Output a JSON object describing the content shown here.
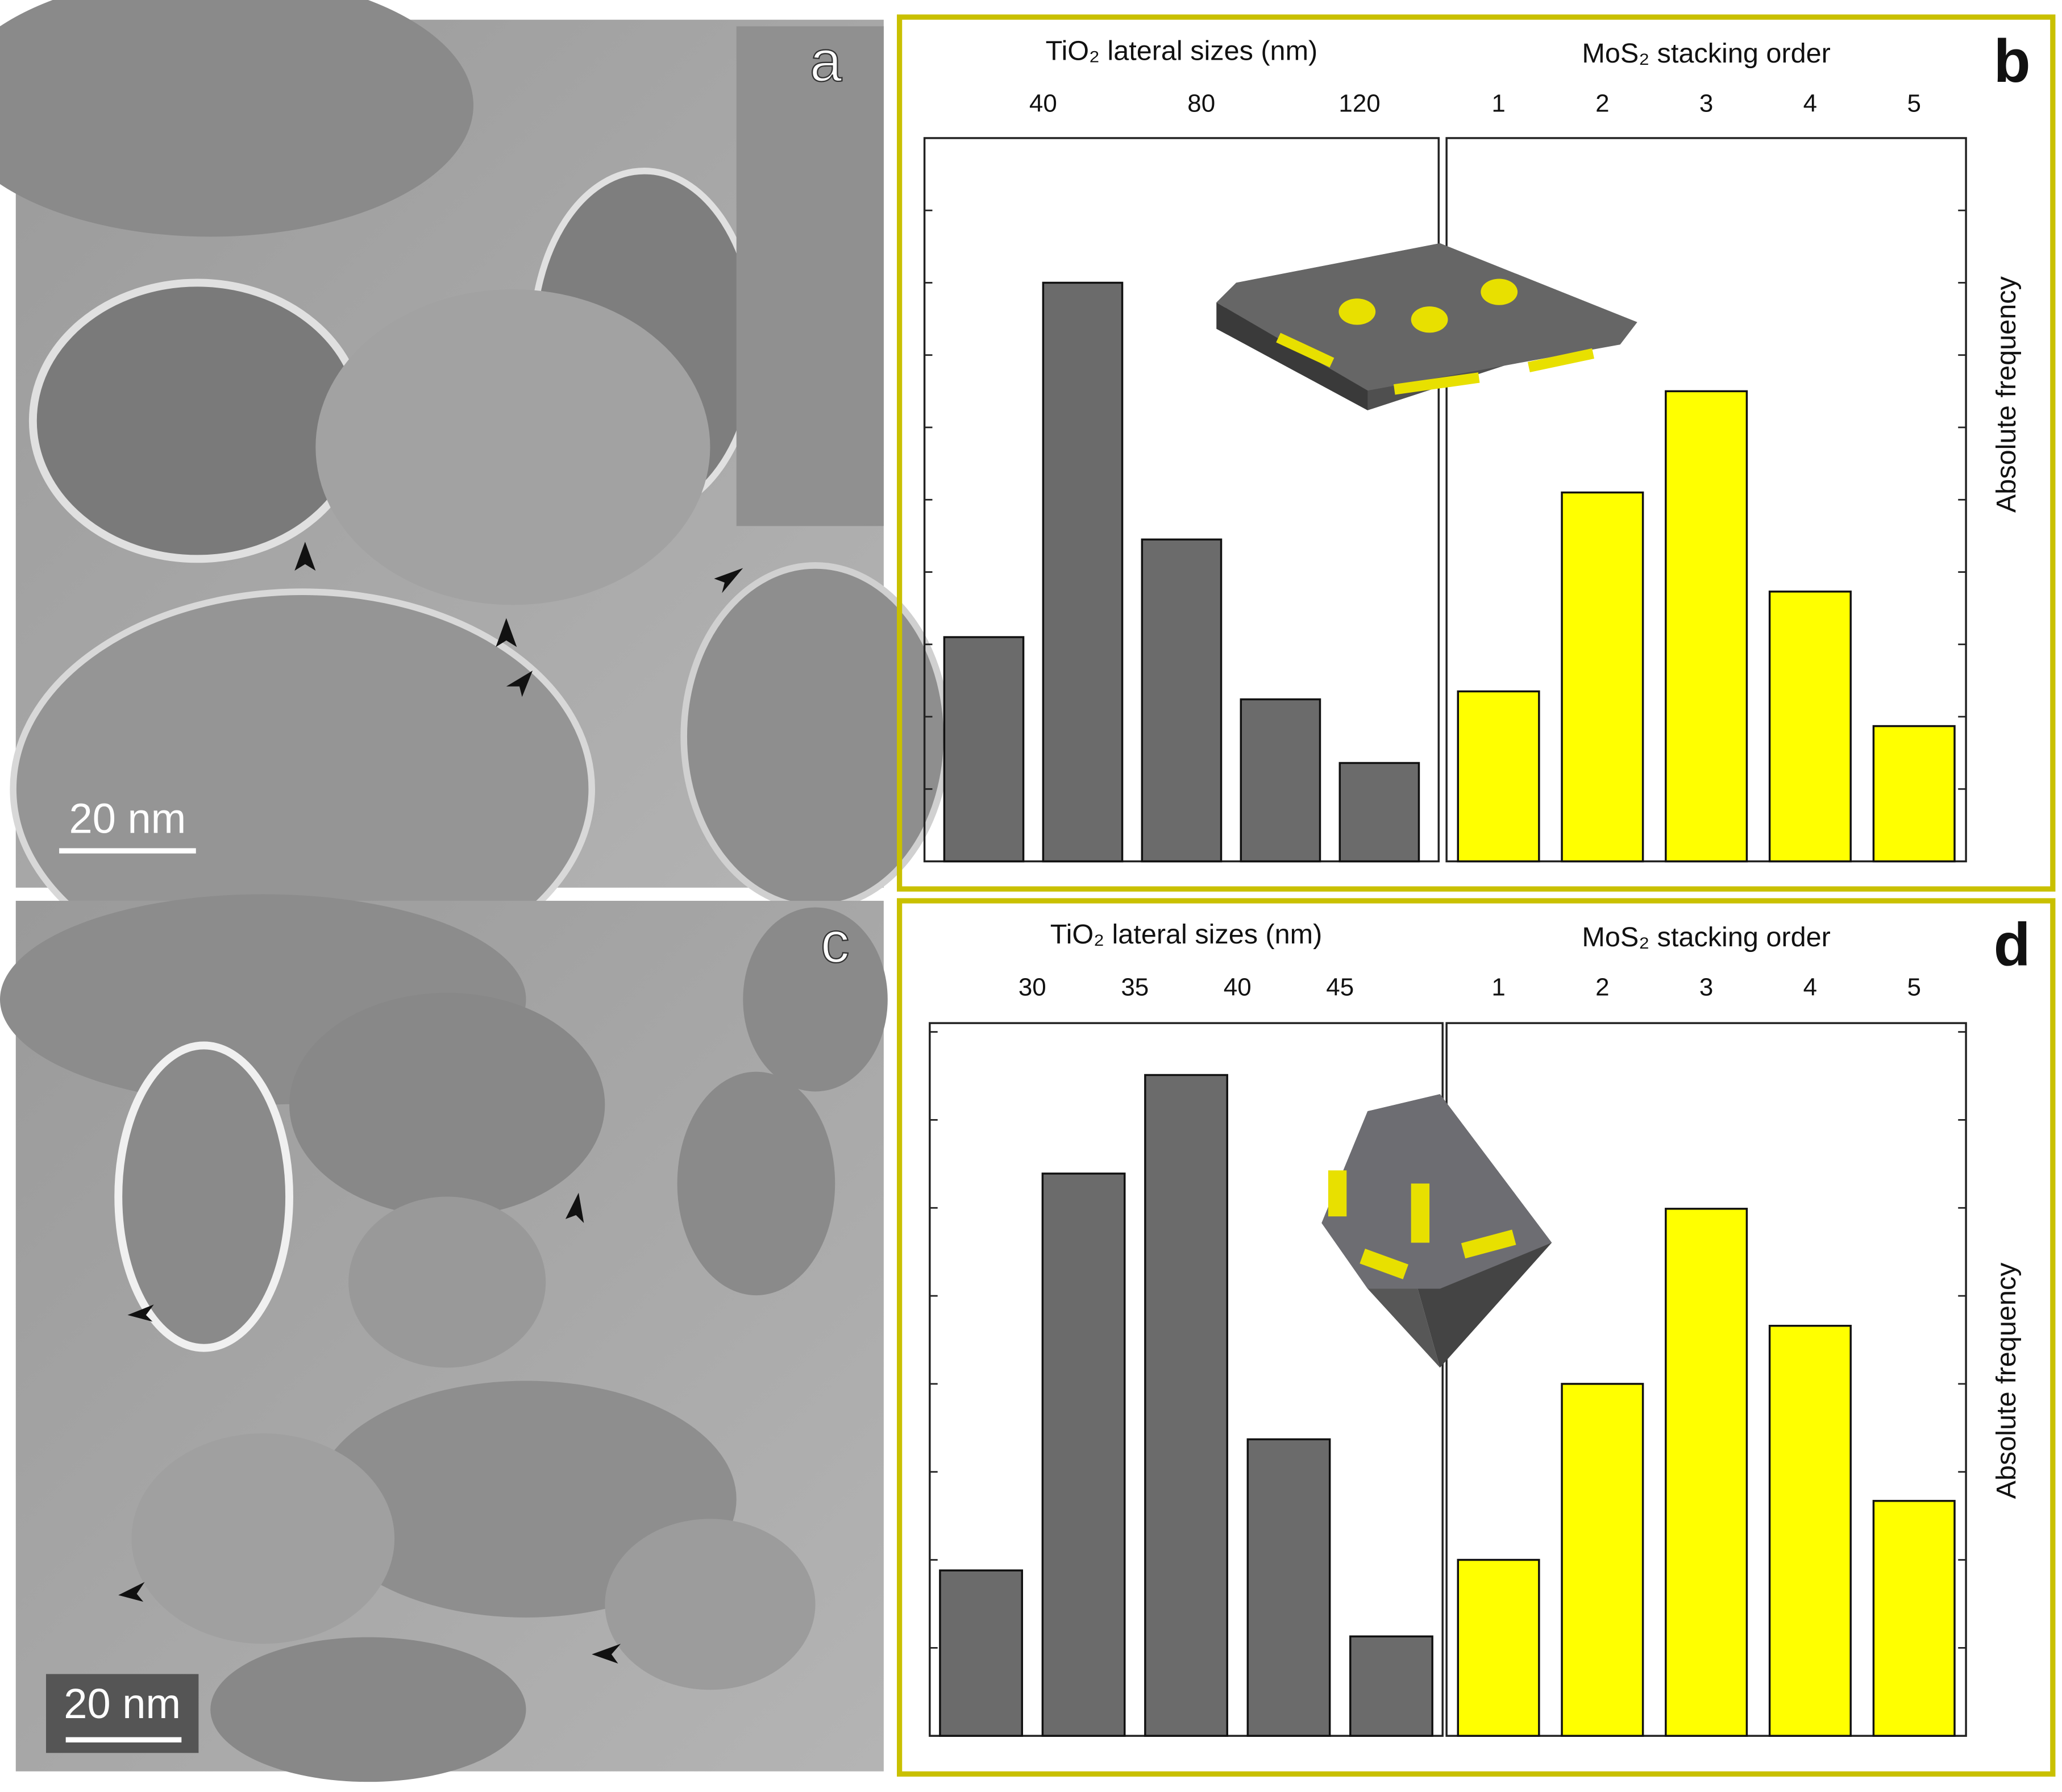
{
  "images": [
    {
      "label": "a",
      "scale_bar": "20 nm"
    },
    {
      "label": "c",
      "scale_bar": "20 nm"
    }
  ],
  "chart_data": [
    {
      "type": "histogram",
      "panel": "b",
      "xlabel": "TiO₂ lateral sizes (nm)",
      "bins": [
        12.5,
        37.5,
        62.5,
        87.5,
        112.5,
        137.5
      ],
      "values": [
        3.1,
        8,
        4.45,
        2.24,
        1.36
      ],
      "color": "#6b6b6b",
      "xlim": [
        10,
        140
      ],
      "xticks": [
        40,
        80,
        120
      ],
      "ylim": [
        0,
        10
      ],
      "yticks": [
        0,
        1,
        2,
        3,
        4,
        5,
        6,
        7,
        8,
        9,
        10
      ]
    },
    {
      "type": "bar",
      "xlabel": "MoS₂ stacking order",
      "ylabel": "Absolute frequency",
      "categories": [
        "1",
        "2",
        "3",
        "4",
        "5"
      ],
      "values": [
        2.35,
        5.1,
        6.5,
        3.73,
        1.87
      ],
      "color": "#ffff00",
      "ylim": [
        0,
        10
      ],
      "yticks": [
        0,
        1,
        2,
        3,
        4,
        5,
        6,
        7,
        8,
        9,
        10
      ]
    },
    {
      "type": "histogram",
      "panel": "d",
      "xlabel": "TiO₂ lateral sizes (nm)",
      "bins": [
        25,
        30,
        35,
        40,
        45,
        50
      ],
      "values": [
        1.88,
        6.39,
        7.51,
        3.37,
        1.13
      ],
      "color": "#6b6b6b",
      "xlim": [
        25,
        50
      ],
      "xticks": [
        30,
        35,
        40,
        45
      ],
      "ylim": [
        0,
        8.1
      ],
      "yticks": [
        0,
        1,
        2,
        3,
        4,
        5,
        6,
        7,
        8
      ]
    },
    {
      "type": "bar",
      "xlabel": "MoS₂ stacking order",
      "ylabel": "Absolute frequency",
      "categories": [
        "1",
        "2",
        "3",
        "4",
        "5"
      ],
      "values": [
        2,
        4,
        5.99,
        4.66,
        2.67
      ],
      "color": "#ffff00",
      "ylim": [
        0,
        8.1
      ],
      "yticks": [
        0,
        1,
        2,
        3,
        4,
        5,
        6,
        7,
        8
      ]
    }
  ]
}
